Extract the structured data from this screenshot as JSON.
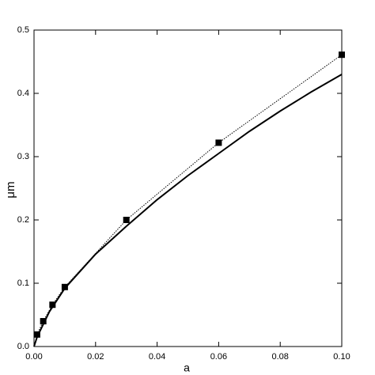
{
  "chart_data": {
    "type": "scatter",
    "x_label": "a",
    "y_label": "μm",
    "xlim": [
      0,
      0.1
    ],
    "ylim": [
      0,
      0.5
    ],
    "xticks": [
      {
        "value": 0,
        "label": "0.00"
      },
      {
        "value": 0.02,
        "label": "0.02"
      },
      {
        "value": 0.04,
        "label": "0.04"
      },
      {
        "value": 0.06,
        "label": "0.06"
      },
      {
        "value": 0.08,
        "label": "0.08"
      },
      {
        "value": 0.1,
        "label": "0.10"
      }
    ],
    "yticks": [
      {
        "value": 0,
        "label": "0.0"
      },
      {
        "value": 0.1,
        "label": "0.1"
      },
      {
        "value": 0.2,
        "label": "0.2"
      },
      {
        "value": 0.3,
        "label": "0.3"
      },
      {
        "value": 0.4,
        "label": "0.4"
      },
      {
        "value": 0.5,
        "label": "0.5"
      }
    ],
    "grid": false,
    "series": [
      {
        "color": "#000000",
        "mode": "markers+dotted",
        "x": [
          0.001,
          0.003,
          0.006,
          0.01,
          0.03,
          0.06,
          0.1
        ],
        "values": [
          0.019,
          0.04,
          0.066,
          0.094,
          0.2,
          0.322,
          0.461
        ]
      },
      {
        "color": "#000000",
        "mode": "line",
        "x": [
          0,
          0.001,
          0.0025,
          0.005,
          0.01,
          0.02,
          0.03,
          0.04,
          0.05,
          0.06,
          0.07,
          0.08,
          0.09,
          0.1
        ],
        "values": [
          0,
          0.015,
          0.03,
          0.055,
          0.092,
          0.146,
          0.19,
          0.232,
          0.27,
          0.305,
          0.34,
          0.372,
          0.402,
          0.43
        ]
      }
    ]
  }
}
